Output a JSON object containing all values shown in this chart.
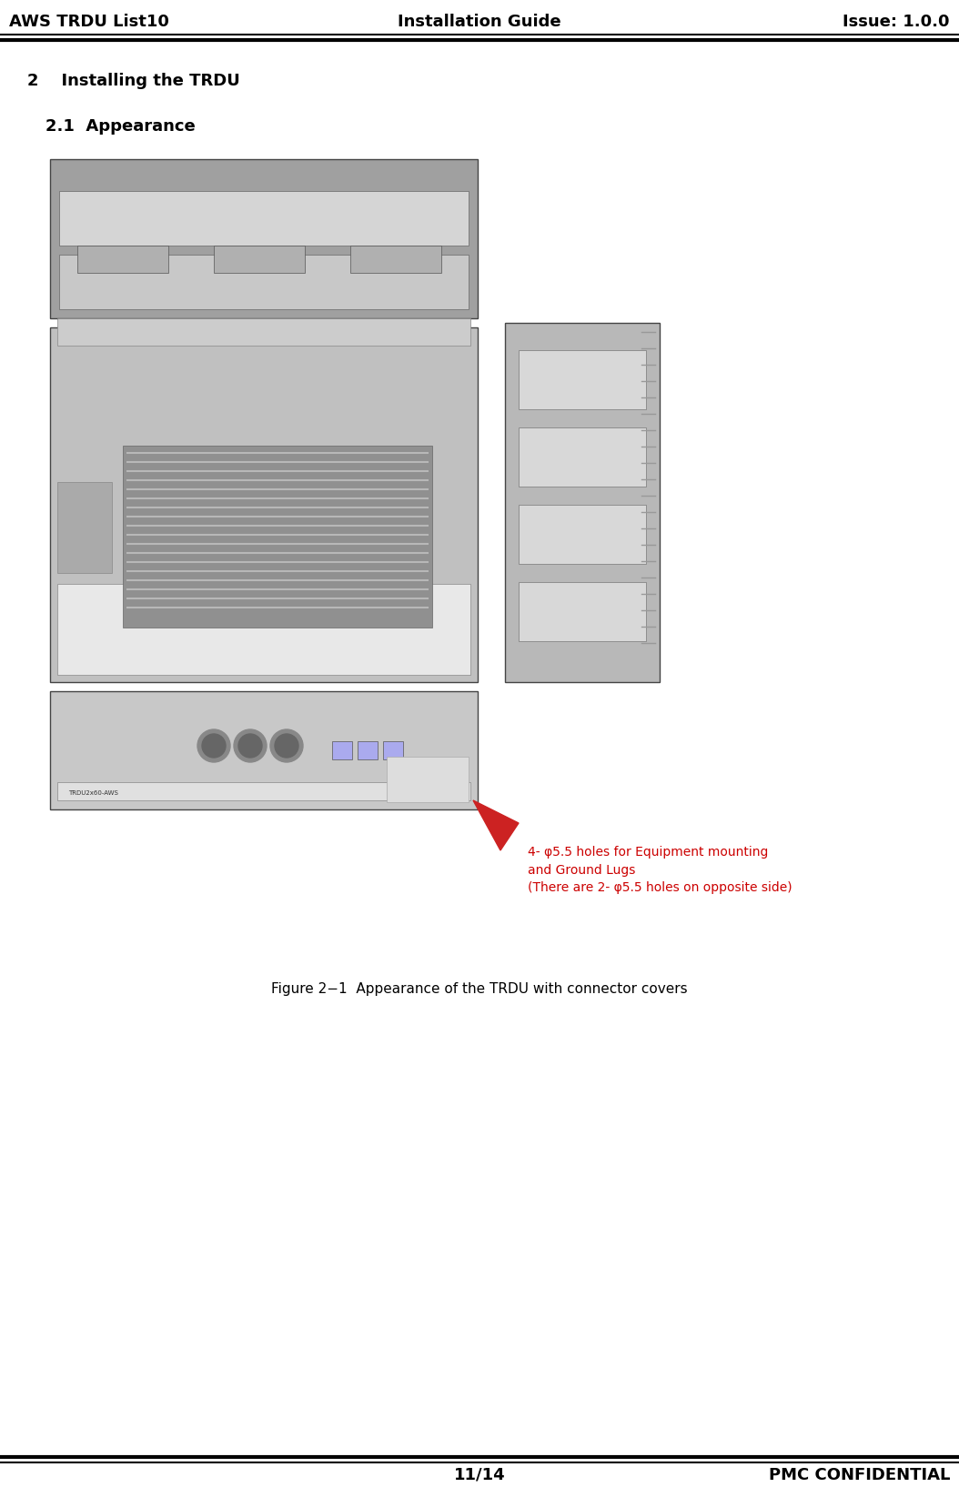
{
  "header_left": "AWS TRDU List10",
  "header_center": "Installation Guide",
  "header_right": "Issue: 1.0.0",
  "footer_center": "11/14",
  "footer_right": "PMC CONFIDENTIAL",
  "section_title": "2    Installing the TRDU",
  "subsection_title": "2.1  Appearance",
  "figure_caption": "Figure 2−1  Appearance of the TRDU with connector covers",
  "annotation_text": "4- φ5.5 holes for Equipment mounting\nand Ground Lugs\n(There are 2- φ5.5 holes on opposite side)",
  "bg_color": "#ffffff",
  "text_color": "#000000",
  "annotation_color": "#cc0000",
  "header_fontsize": 13,
  "section_fontsize": 13,
  "caption_fontsize": 11,
  "annotation_fontsize": 10,
  "fig_width": 1054,
  "fig_height": 1646,
  "dpi": 100
}
